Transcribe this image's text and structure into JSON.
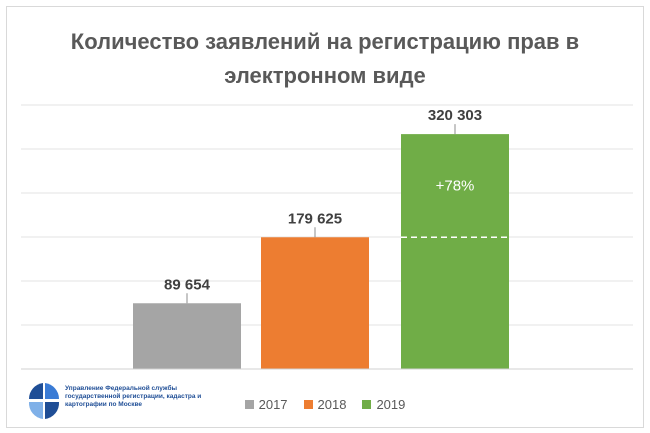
{
  "chart_data": {
    "type": "bar",
    "title_lines": [
      "Количество заявлений на регистрацию прав в",
      "электронном виде"
    ],
    "categories": [
      "2017",
      "2018",
      "2019"
    ],
    "values": [
      89654,
      179625,
      320303
    ],
    "value_labels": [
      "89 654",
      "179 625",
      "320 303"
    ],
    "colors": [
      "#a5a5a5",
      "#ed7d31",
      "#70ad47"
    ],
    "ylim": [
      0,
      360000
    ],
    "grid": true,
    "legend_position": "bottom",
    "annotation": {
      "text": "+78%",
      "category": "2019",
      "reference_value": 179625
    }
  },
  "logo": {
    "text": "Управление Федеральной службы государственной регистрации, кадастра и картографии по Москве"
  }
}
